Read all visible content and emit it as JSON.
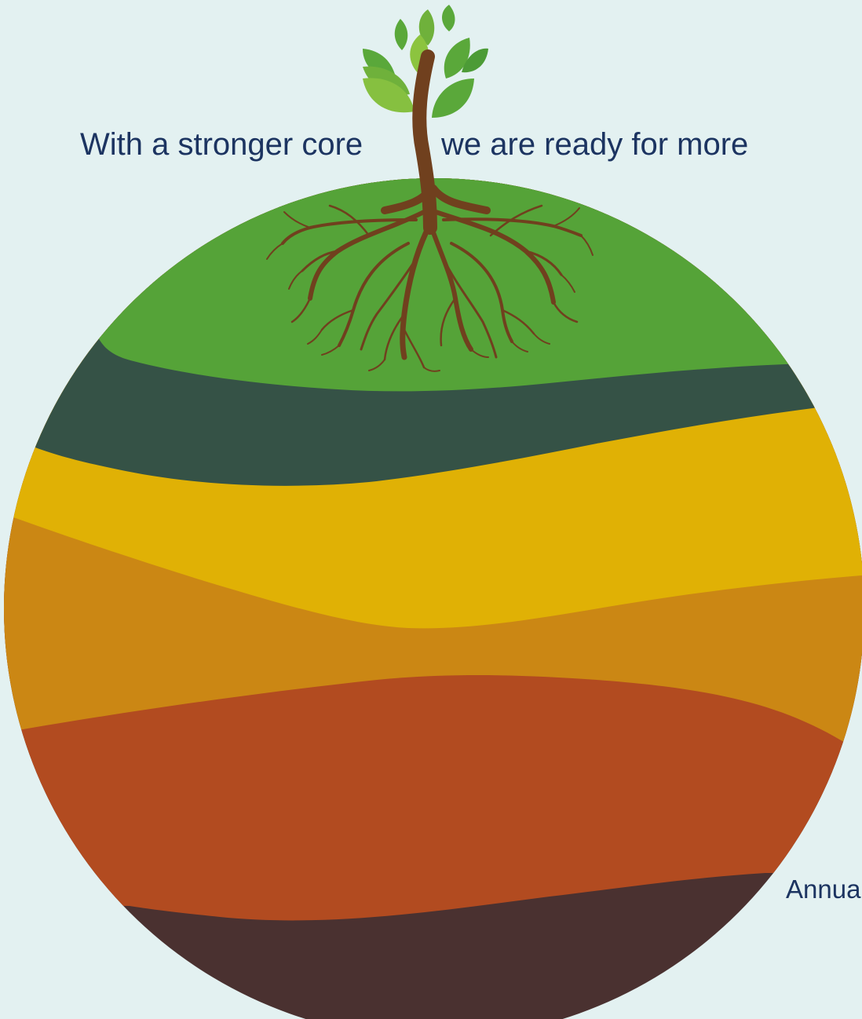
{
  "tagline": {
    "part1": "With a stronger core",
    "part2": "we are ready for more"
  },
  "footer_text": "Annua",
  "colors": {
    "background": "#e3f1f1",
    "text": "#1c3461",
    "layer_topsoil": "#55a338",
    "layer_dark_green": "#355246",
    "layer_yellow": "#e0b105",
    "layer_ochre": "#cb8714",
    "layer_rust": "#b24b20",
    "layer_bedrock": "#4a3130",
    "tree_trunk": "#70401e",
    "leaf_light": "#8cc43f",
    "leaf_dark": "#4c9b36"
  },
  "illustration": {
    "name": "earth-layers-with-tree",
    "icon": "sprouting-tree-icon"
  }
}
